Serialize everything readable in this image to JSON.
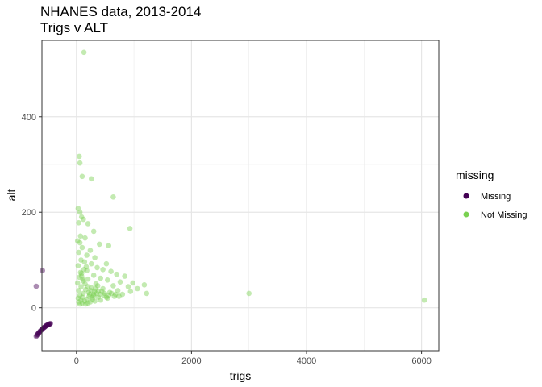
{
  "chart_data": {
    "type": "scatter",
    "title": "NHANES data, 2013-2014",
    "subtitle": "Trigs v ALT",
    "xlabel": "trigs",
    "ylabel": "alt",
    "xlim": [
      -600,
      6300
    ],
    "ylim": [
      -90,
      560
    ],
    "x_ticks": [
      0,
      2000,
      4000,
      6000
    ],
    "y_ticks": [
      0,
      200,
      400
    ],
    "x_tick_labels": [
      "0",
      "2000",
      "4000",
      "6000"
    ],
    "y_tick_labels": [
      "0",
      "200",
      "400"
    ],
    "grid": true,
    "legend": {
      "title": "missing",
      "placement": "right"
    },
    "series": [
      {
        "name": "Missing",
        "color": "#440154",
        "opacity": 0.45,
        "points": [
          [
            -700,
            45
          ],
          [
            -590,
            78
          ],
          [
            -700,
            -60
          ],
          [
            -690,
            -58
          ],
          [
            -680,
            -56
          ],
          [
            -670,
            -55
          ],
          [
            -660,
            -53
          ],
          [
            -650,
            -52
          ],
          [
            -640,
            -51
          ],
          [
            -630,
            -49
          ],
          [
            -620,
            -48
          ],
          [
            -610,
            -47
          ],
          [
            -600,
            -45
          ],
          [
            -590,
            -44
          ],
          [
            -580,
            -43
          ],
          [
            -570,
            -42
          ],
          [
            -560,
            -41
          ],
          [
            -550,
            -40
          ],
          [
            -540,
            -39
          ],
          [
            -530,
            -38
          ],
          [
            -520,
            -37
          ],
          [
            -510,
            -37
          ],
          [
            -500,
            -36
          ],
          [
            -490,
            -35
          ],
          [
            -480,
            -35
          ],
          [
            -470,
            -34
          ],
          [
            -460,
            -34
          ],
          [
            -450,
            -33
          ]
        ]
      },
      {
        "name": "Not Missing",
        "color": "#7AD151",
        "opacity": 0.45,
        "points": [
          [
            130,
            535
          ],
          [
            50,
            317
          ],
          [
            60,
            303
          ],
          [
            100,
            275
          ],
          [
            260,
            270
          ],
          [
            640,
            232
          ],
          [
            30,
            208
          ],
          [
            60,
            200
          ],
          [
            90,
            190
          ],
          [
            120,
            185
          ],
          [
            40,
            178
          ],
          [
            200,
            176
          ],
          [
            930,
            166
          ],
          [
            300,
            160
          ],
          [
            70,
            150
          ],
          [
            150,
            146
          ],
          [
            20,
            140
          ],
          [
            60,
            136
          ],
          [
            400,
            133
          ],
          [
            560,
            130
          ],
          [
            100,
            126
          ],
          [
            240,
            120
          ],
          [
            40,
            116
          ],
          [
            180,
            110
          ],
          [
            320,
            105
          ],
          [
            80,
            100
          ],
          [
            140,
            96
          ],
          [
            260,
            92
          ],
          [
            520,
            92
          ],
          [
            30,
            88
          ],
          [
            360,
            84
          ],
          [
            460,
            80
          ],
          [
            180,
            78
          ],
          [
            600,
            76
          ],
          [
            90,
            72
          ],
          [
            700,
            70
          ],
          [
            300,
            68
          ],
          [
            840,
            66
          ],
          [
            50,
            64
          ],
          [
            420,
            62
          ],
          [
            200,
            60
          ],
          [
            540,
            58
          ],
          [
            120,
            56
          ],
          [
            760,
            54
          ],
          [
            20,
            52
          ],
          [
            980,
            52
          ],
          [
            340,
            50
          ],
          [
            1180,
            48
          ],
          [
            640,
            46
          ],
          [
            80,
            44
          ],
          [
            900,
            44
          ],
          [
            260,
            42
          ],
          [
            1060,
            40
          ],
          [
            460,
            40
          ],
          [
            160,
            38
          ],
          [
            720,
            36
          ],
          [
            40,
            36
          ],
          [
            380,
            34
          ],
          [
            940,
            34
          ],
          [
            580,
            32
          ],
          [
            120,
            30
          ],
          [
            1220,
            30
          ],
          [
            300,
            28
          ],
          [
            800,
            28
          ],
          [
            60,
            26
          ],
          [
            480,
            26
          ],
          [
            220,
            24
          ],
          [
            660,
            24
          ],
          [
            100,
            22
          ],
          [
            380,
            22
          ],
          [
            30,
            20
          ],
          [
            540,
            20
          ],
          [
            180,
            18
          ],
          [
            280,
            18
          ],
          [
            420,
            16
          ],
          [
            80,
            16
          ],
          [
            140,
            14
          ],
          [
            320,
            14
          ],
          [
            40,
            12
          ],
          [
            240,
            12
          ],
          [
            200,
            10
          ],
          [
            100,
            10
          ],
          [
            60,
            8
          ],
          [
            160,
            8
          ],
          [
            300,
            26
          ],
          [
            350,
            30
          ],
          [
            250,
            36
          ],
          [
            200,
            44
          ],
          [
            150,
            50
          ],
          [
            110,
            60
          ],
          [
            90,
            66
          ],
          [
            70,
            74
          ],
          [
            130,
            80
          ],
          [
            170,
            86
          ],
          [
            210,
            32
          ],
          [
            230,
            28
          ],
          [
            270,
            22
          ],
          [
            310,
            34
          ],
          [
            330,
            40
          ],
          [
            370,
            46
          ],
          [
            410,
            28
          ],
          [
            440,
            34
          ],
          [
            490,
            30
          ],
          [
            520,
            22
          ],
          [
            560,
            26
          ],
          [
            610,
            30
          ],
          [
            680,
            28
          ],
          [
            740,
            24
          ],
          [
            3000,
            30
          ],
          [
            6050,
            16
          ]
        ]
      }
    ]
  }
}
